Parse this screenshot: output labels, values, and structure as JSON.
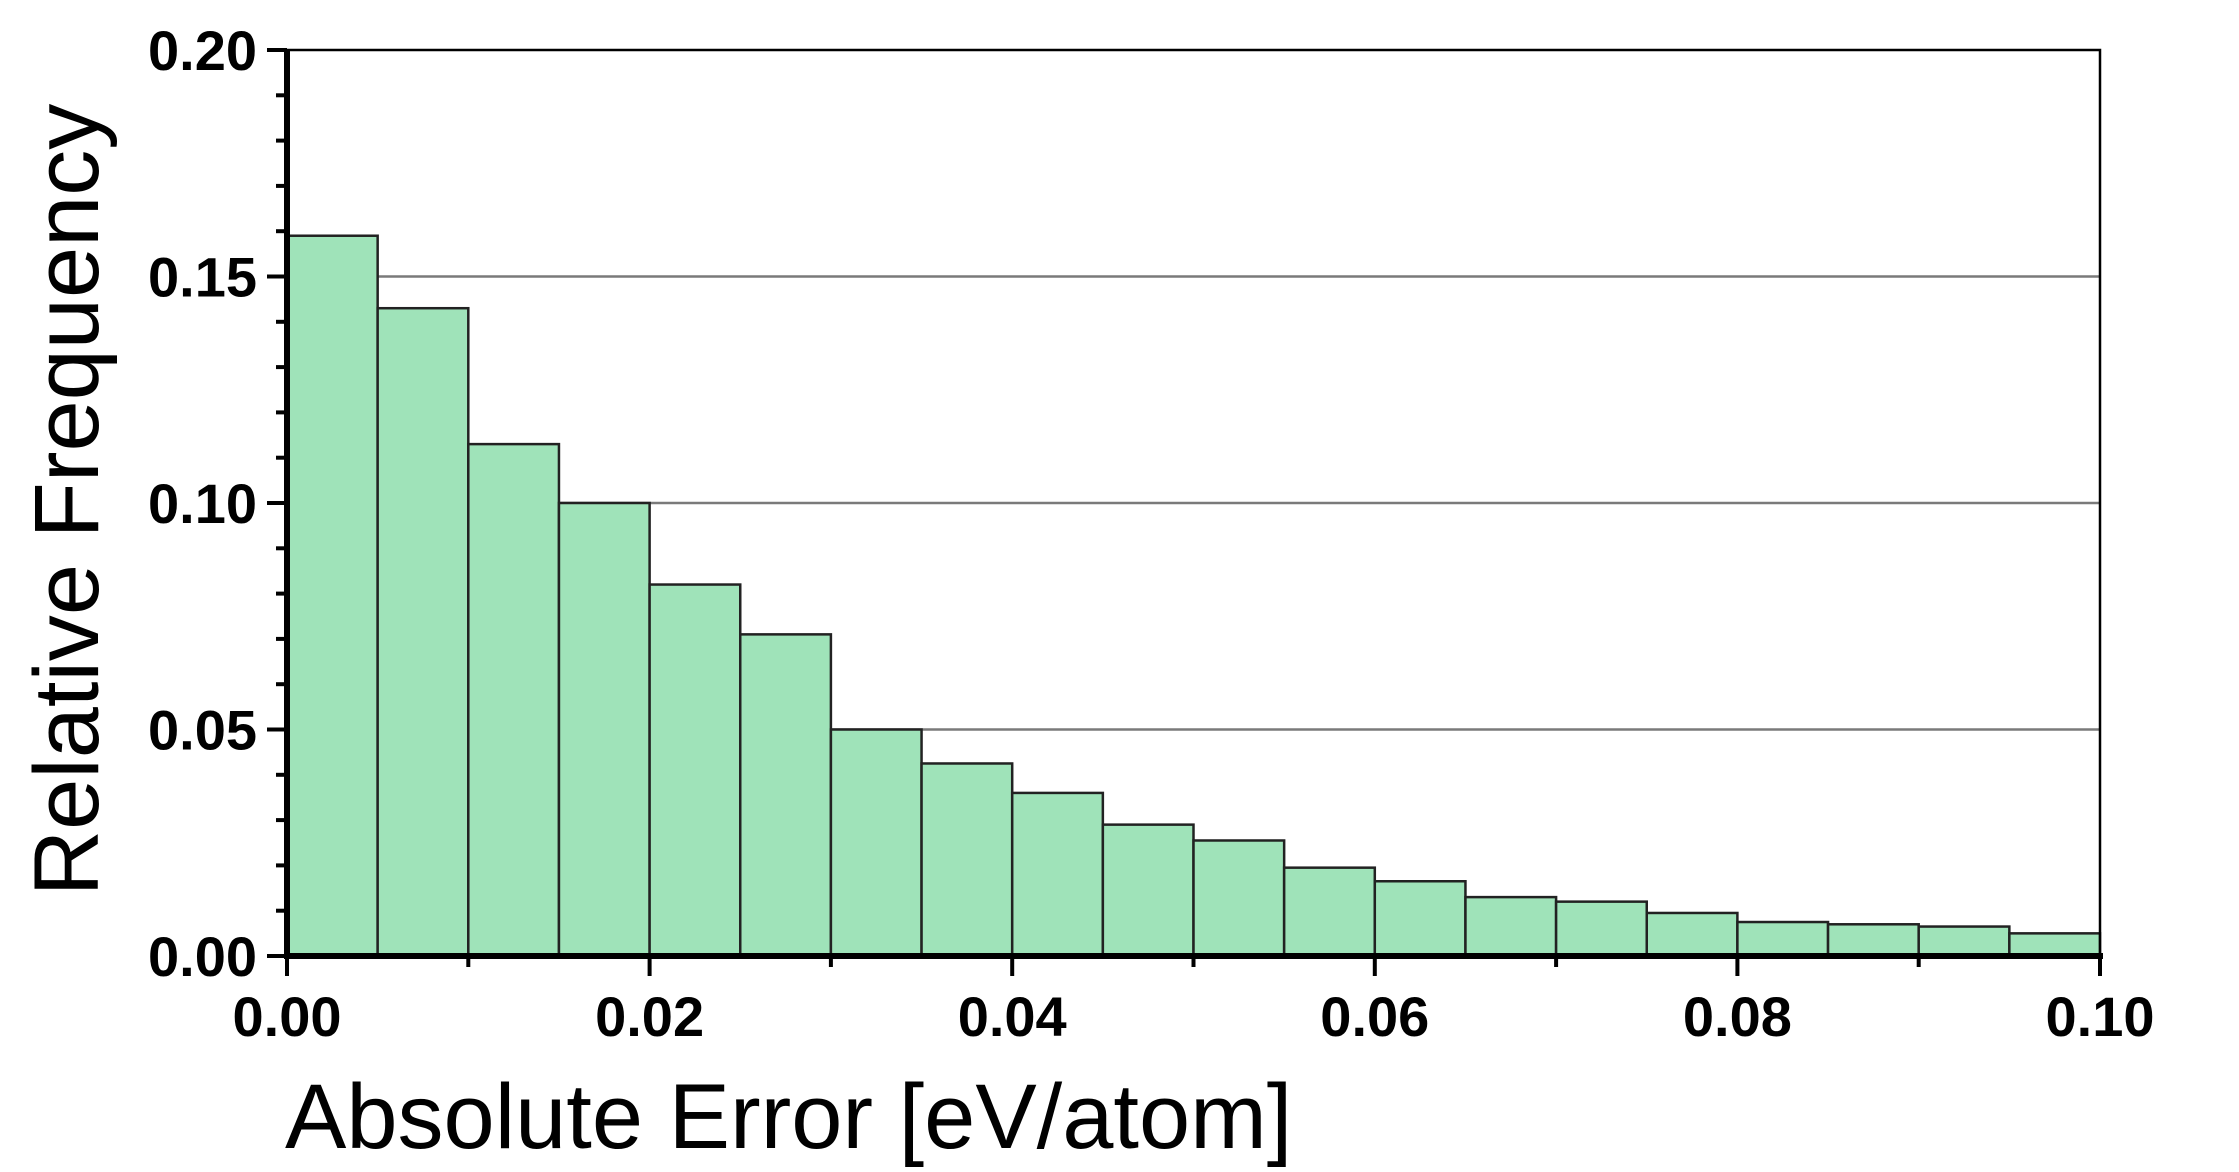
{
  "chart_data": {
    "type": "bar",
    "title": "",
    "xlabel": "Absolute Error [eV/atom]",
    "ylabel": "Relative Frequency",
    "xlim": [
      0.0,
      0.1
    ],
    "ylim": [
      0.0,
      0.2
    ],
    "bin_width": 0.005,
    "x_ticks": [
      "0.00",
      "0.02",
      "0.04",
      "0.06",
      "0.08",
      "0.10"
    ],
    "y_ticks": [
      "0.00",
      "0.05",
      "0.10",
      "0.15",
      "0.20"
    ],
    "bin_starts": [
      0.0,
      0.005,
      0.01,
      0.015,
      0.02,
      0.025,
      0.03,
      0.035,
      0.04,
      0.045,
      0.05,
      0.055,
      0.06,
      0.065,
      0.07,
      0.075,
      0.08,
      0.085,
      0.09,
      0.095
    ],
    "values": [
      0.159,
      0.143,
      0.113,
      0.1,
      0.082,
      0.071,
      0.05,
      0.0425,
      0.036,
      0.029,
      0.0255,
      0.0195,
      0.0165,
      0.013,
      0.012,
      0.0095,
      0.0075,
      0.007,
      0.0065,
      0.005
    ],
    "grid": "horizontal",
    "legend": "none",
    "bar_color": "#9fe3b9",
    "edge_color": "#222222"
  }
}
